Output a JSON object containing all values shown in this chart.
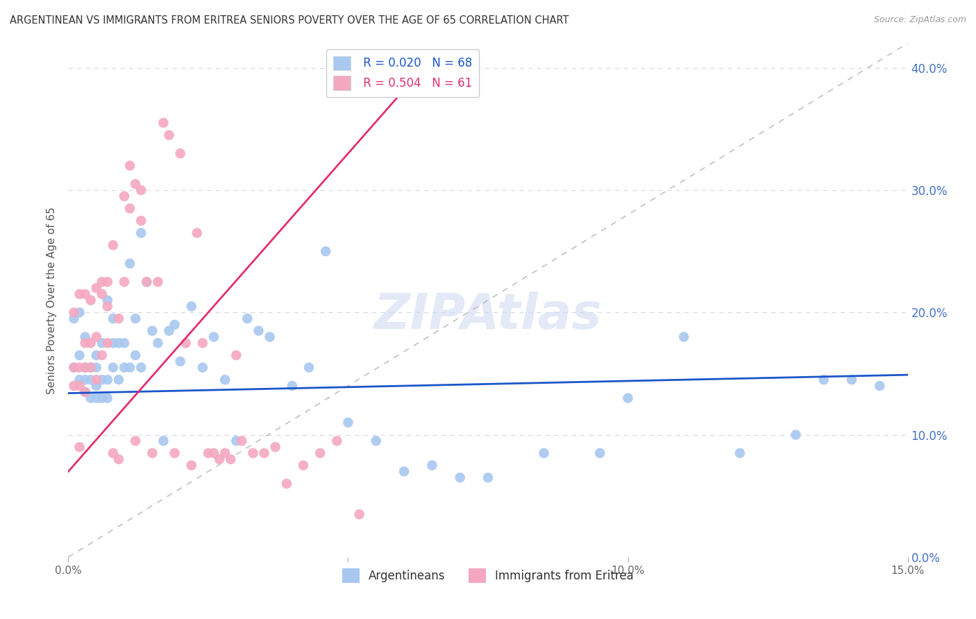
{
  "title": "ARGENTINEAN VS IMMIGRANTS FROM ERITREA SENIORS POVERTY OVER THE AGE OF 65 CORRELATION CHART",
  "source": "Source: ZipAtlas.com",
  "ylabel": "Seniors Poverty Over the Age of 65",
  "xlim": [
    0.0,
    0.15
  ],
  "ylim": [
    0.0,
    0.42
  ],
  "blue_color": "#a8c8f0",
  "pink_color": "#f4a8c0",
  "blue_line_color": "#1a56c8",
  "pink_line_color": "#e03070",
  "diagonal_color": "#c0c0c0",
  "background_color": "#ffffff",
  "grid_color": "#d8d8e8",
  "legend_blue_r": "R = 0.020",
  "legend_blue_n": "N = 68",
  "legend_pink_r": "R = 0.504",
  "legend_pink_n": "N = 61",
  "argentineans_x": [
    0.001,
    0.001,
    0.002,
    0.002,
    0.002,
    0.003,
    0.003,
    0.003,
    0.003,
    0.004,
    0.004,
    0.004,
    0.005,
    0.005,
    0.005,
    0.005,
    0.006,
    0.006,
    0.006,
    0.007,
    0.007,
    0.007,
    0.008,
    0.008,
    0.008,
    0.009,
    0.009,
    0.01,
    0.01,
    0.011,
    0.011,
    0.012,
    0.012,
    0.013,
    0.013,
    0.014,
    0.015,
    0.016,
    0.017,
    0.018,
    0.019,
    0.02,
    0.022,
    0.024,
    0.026,
    0.028,
    0.03,
    0.032,
    0.034,
    0.036,
    0.04,
    0.043,
    0.046,
    0.05,
    0.055,
    0.06,
    0.065,
    0.07,
    0.075,
    0.085,
    0.095,
    0.1,
    0.11,
    0.12,
    0.13,
    0.135,
    0.14,
    0.145
  ],
  "argentineans_y": [
    0.155,
    0.195,
    0.145,
    0.165,
    0.2,
    0.135,
    0.145,
    0.155,
    0.18,
    0.13,
    0.145,
    0.155,
    0.13,
    0.14,
    0.155,
    0.165,
    0.13,
    0.145,
    0.175,
    0.13,
    0.145,
    0.21,
    0.155,
    0.175,
    0.195,
    0.145,
    0.175,
    0.155,
    0.175,
    0.155,
    0.24,
    0.165,
    0.195,
    0.155,
    0.265,
    0.225,
    0.185,
    0.175,
    0.095,
    0.185,
    0.19,
    0.16,
    0.205,
    0.155,
    0.18,
    0.145,
    0.095,
    0.195,
    0.185,
    0.18,
    0.14,
    0.155,
    0.25,
    0.11,
    0.095,
    0.07,
    0.075,
    0.065,
    0.065,
    0.085,
    0.085,
    0.13,
    0.18,
    0.085,
    0.1,
    0.145,
    0.145,
    0.14
  ],
  "eritrea_x": [
    0.001,
    0.001,
    0.001,
    0.002,
    0.002,
    0.002,
    0.002,
    0.003,
    0.003,
    0.003,
    0.003,
    0.004,
    0.004,
    0.004,
    0.005,
    0.005,
    0.005,
    0.006,
    0.006,
    0.006,
    0.007,
    0.007,
    0.007,
    0.008,
    0.008,
    0.009,
    0.009,
    0.01,
    0.01,
    0.011,
    0.011,
    0.012,
    0.012,
    0.013,
    0.013,
    0.014,
    0.015,
    0.016,
    0.017,
    0.018,
    0.019,
    0.02,
    0.021,
    0.022,
    0.023,
    0.024,
    0.025,
    0.026,
    0.027,
    0.028,
    0.029,
    0.03,
    0.031,
    0.033,
    0.035,
    0.037,
    0.039,
    0.042,
    0.045,
    0.048,
    0.052
  ],
  "eritrea_y": [
    0.14,
    0.155,
    0.2,
    0.09,
    0.14,
    0.155,
    0.215,
    0.135,
    0.155,
    0.175,
    0.215,
    0.155,
    0.175,
    0.21,
    0.145,
    0.18,
    0.22,
    0.165,
    0.215,
    0.225,
    0.175,
    0.205,
    0.225,
    0.085,
    0.255,
    0.08,
    0.195,
    0.225,
    0.295,
    0.285,
    0.32,
    0.095,
    0.305,
    0.275,
    0.3,
    0.225,
    0.085,
    0.225,
    0.355,
    0.345,
    0.085,
    0.33,
    0.175,
    0.075,
    0.265,
    0.175,
    0.085,
    0.085,
    0.08,
    0.085,
    0.08,
    0.165,
    0.095,
    0.085,
    0.085,
    0.09,
    0.06,
    0.075,
    0.085,
    0.095,
    0.035
  ]
}
